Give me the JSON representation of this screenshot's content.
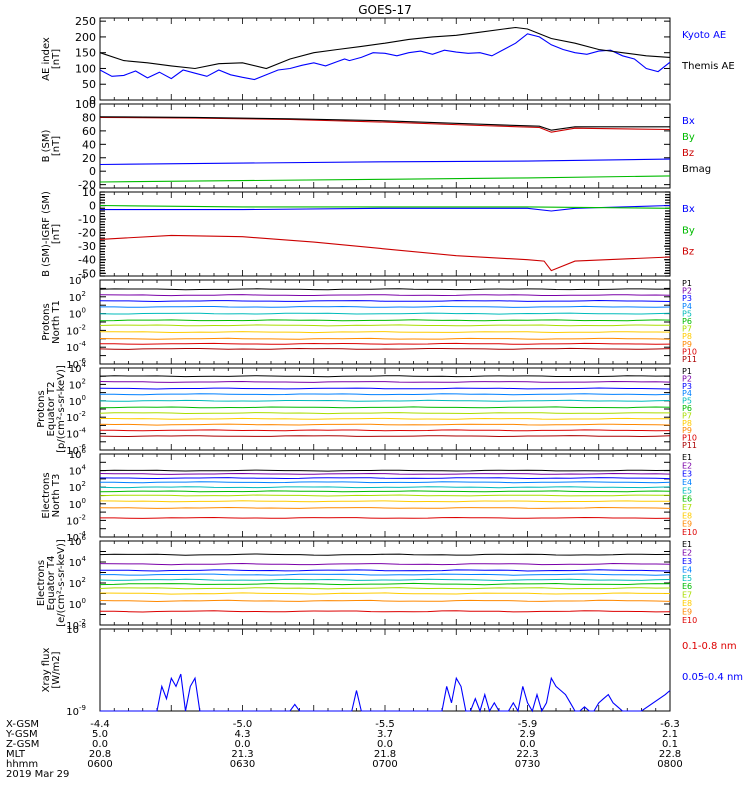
{
  "title": "GOES-17",
  "chart_data": [
    {
      "type": "line",
      "ylabel": [
        "AE index",
        "[nT]"
      ],
      "ylim": [
        0,
        260
      ],
      "yticks": [
        0,
        50,
        100,
        150,
        200,
        250
      ],
      "legend": [
        "Kyoto AE",
        "Themis AE"
      ],
      "colors": [
        "#0000ff",
        "#000000"
      ],
      "series": [
        {
          "name": "Kyoto AE",
          "x": [
            0,
            5,
            10,
            15,
            20,
            25,
            30,
            35,
            40,
            45,
            50,
            55,
            60,
            65,
            70,
            75,
            80,
            85,
            90,
            95,
            100,
            103,
            105,
            110,
            115,
            120,
            125,
            130,
            135,
            140,
            145,
            150,
            155,
            160,
            165,
            170,
            175,
            180,
            185,
            190,
            195,
            200,
            205,
            210,
            215,
            220,
            225,
            230,
            235,
            240
          ],
          "y": [
            95,
            75,
            78,
            92,
            70,
            88,
            68,
            95,
            85,
            75,
            95,
            80,
            72,
            65,
            80,
            95,
            100,
            110,
            118,
            108,
            122,
            130,
            125,
            135,
            150,
            148,
            140,
            150,
            155,
            145,
            158,
            152,
            148,
            150,
            140,
            160,
            180,
            210,
            200,
            175,
            160,
            150,
            145,
            155,
            158,
            140,
            130,
            100,
            90,
            120
          ]
        },
        {
          "name": "Themis AE",
          "x": [
            0,
            10,
            20,
            30,
            40,
            50,
            60,
            70,
            80,
            90,
            100,
            110,
            120,
            130,
            140,
            150,
            160,
            170,
            175,
            180,
            190,
            200,
            210,
            220,
            230,
            240
          ],
          "y": [
            150,
            125,
            118,
            108,
            100,
            115,
            118,
            100,
            130,
            150,
            160,
            170,
            180,
            192,
            200,
            205,
            215,
            225,
            230,
            225,
            195,
            180,
            160,
            150,
            140,
            135
          ]
        }
      ]
    },
    {
      "type": "line",
      "ylabel": [
        "B (SM)",
        "[nT]"
      ],
      "ylim": [
        -25,
        100
      ],
      "yticks": [
        -20,
        0,
        20,
        40,
        60,
        80,
        100
      ],
      "legend": [
        "Bx",
        "By",
        "Bz",
        "Bmag"
      ],
      "colors": [
        "#0000ff",
        "#00bb00",
        "#cc0000",
        "#000000"
      ],
      "series": [
        {
          "name": "Bx",
          "x": [
            0,
            60,
            120,
            180,
            240
          ],
          "y": [
            10,
            12,
            14,
            15,
            18
          ]
        },
        {
          "name": "By",
          "x": [
            0,
            60,
            120,
            180,
            240
          ],
          "y": [
            -16,
            -14,
            -12,
            -10,
            -7
          ]
        },
        {
          "name": "Bz",
          "x": [
            0,
            40,
            80,
            120,
            160,
            185,
            190,
            200,
            240
          ],
          "y": [
            80,
            79,
            77,
            73,
            68,
            65,
            58,
            64,
            62
          ]
        },
        {
          "name": "Bmag",
          "x": [
            0,
            40,
            80,
            120,
            160,
            185,
            190,
            200,
            240
          ],
          "y": [
            81,
            80,
            78,
            75,
            70,
            67,
            61,
            66,
            66
          ]
        }
      ]
    },
    {
      "type": "line",
      "ylabel": [
        "B (SM)-IGRF (SM)",
        "[nT]"
      ],
      "ylim": [
        -52,
        10
      ],
      "yticks": [
        -50,
        -40,
        -30,
        -20,
        -10,
        0,
        10
      ],
      "legend": [
        "Bx",
        "By",
        "Bz"
      ],
      "colors": [
        "#0000ff",
        "#00bb00",
        "#cc0000"
      ],
      "series": [
        {
          "name": "Bx",
          "x": [
            0,
            60,
            120,
            180,
            190,
            200,
            240
          ],
          "y": [
            -3,
            -3,
            -2,
            -2,
            -4,
            -2,
            0
          ]
        },
        {
          "name": "By",
          "x": [
            0,
            60,
            120,
            180,
            240
          ],
          "y": [
            0,
            -1,
            -1,
            -1,
            -2
          ]
        },
        {
          "name": "Bz",
          "x": [
            0,
            30,
            60,
            90,
            120,
            150,
            180,
            187,
            190,
            200,
            240
          ],
          "y": [
            -25,
            -22,
            -23,
            -27,
            -32,
            -37,
            -40,
            -41,
            -48,
            -41,
            -38
          ]
        }
      ]
    },
    {
      "type": "line",
      "ylabel": [
        "Protons",
        "North T1"
      ],
      "ylog": true,
      "ylim_exp": [
        -6,
        4
      ],
      "legend": [
        "P1",
        "P2",
        "P3",
        "P4",
        "P5",
        "P6",
        "P7",
        "P8",
        "P9",
        "P10",
        "P11"
      ],
      "colors": [
        "#000000",
        "#7a00a8",
        "#0000ff",
        "#0080ff",
        "#00bbbb",
        "#00bb00",
        "#aadd00",
        "#ffcc00",
        "#ff8800",
        "#dd0000",
        "#aa0000"
      ],
      "levels": [
        2.9,
        2.2,
        1.5,
        0.8,
        0,
        -0.8,
        -1.4,
        -2.2,
        -3.0,
        -3.6,
        -4.2
      ]
    },
    {
      "type": "line",
      "ylabel": [
        "Protons",
        "Equator T2",
        "[p/(cm²-s-sr-keV)]"
      ],
      "ylog": true,
      "ylim_exp": [
        -6,
        4
      ],
      "legend": [
        "P1",
        "P2",
        "P3",
        "P4",
        "P5",
        "P6",
        "P7",
        "P8",
        "P9",
        "P10",
        "P11"
      ],
      "colors": [
        "#000000",
        "#7a00a8",
        "#0000ff",
        "#0080ff",
        "#00bbbb",
        "#00bb00",
        "#aadd00",
        "#ffcc00",
        "#ff8800",
        "#dd0000",
        "#aa0000"
      ],
      "levels": [
        3.0,
        2.3,
        1.5,
        0.8,
        0,
        -0.8,
        -1.5,
        -2.2,
        -2.9,
        -3.6,
        -4.3
      ]
    },
    {
      "type": "line",
      "ylabel": [
        "Electrons",
        "North T3"
      ],
      "ylog": true,
      "ylim_exp": [
        -4,
        6
      ],
      "legend": [
        "E1",
        "E2",
        "E3",
        "E4",
        "E5",
        "E6",
        "E7",
        "E8",
        "E9",
        "E10"
      ],
      "colors": [
        "#000000",
        "#7a00a8",
        "#0000ff",
        "#0080ff",
        "#00bbbb",
        "#00bb00",
        "#aadd00",
        "#ffcc00",
        "#ff8800",
        "#dd0000"
      ],
      "levels": [
        4.0,
        3.6,
        3.1,
        2.6,
        2.0,
        1.5,
        1.0,
        0.3,
        -0.5,
        -1.7
      ]
    },
    {
      "type": "line",
      "ylabel": [
        "Electrons",
        "Equator T4",
        "[e/(cm²-s-sr-keV)]"
      ],
      "ylog": true,
      "ylim_exp": [
        -2,
        6
      ],
      "legend": [
        "E1",
        "E2",
        "E3",
        "E4",
        "E5",
        "E6",
        "E7",
        "E8",
        "E9",
        "E10"
      ],
      "colors": [
        "#000000",
        "#7a00a8",
        "#0000ff",
        "#0080ff",
        "#00bbbb",
        "#00bb00",
        "#aadd00",
        "#ffcc00",
        "#ff8800",
        "#dd0000"
      ],
      "levels": [
        4.7,
        3.8,
        3.2,
        2.8,
        2.3,
        1.9,
        1.5,
        1.0,
        0.3,
        -0.7
      ]
    },
    {
      "type": "line",
      "ylabel": [
        "Xray flux",
        "[W/m2]"
      ],
      "ylog": true,
      "ylim_exp": [
        -9,
        -8
      ],
      "legend": [
        "0.1-0.8 nm",
        "0.05-0.4 nm"
      ],
      "colors": [
        "#dd0000",
        "#0000ff"
      ],
      "series": [
        {
          "name": "0.05-0.4 nm",
          "x": [
            0,
            24,
            26,
            28,
            30,
            32,
            34,
            36,
            38,
            40,
            42,
            44,
            46,
            48,
            80,
            82,
            84,
            106,
            108,
            110,
            144,
            146,
            148,
            150,
            152,
            154,
            156,
            158,
            160,
            162,
            164,
            166,
            168,
            170,
            172,
            174,
            176,
            178,
            180,
            182,
            184,
            186,
            188,
            190,
            192,
            194,
            196,
            198,
            200,
            202,
            204,
            206,
            208,
            210,
            212,
            214,
            216,
            218,
            220,
            222,
            224,
            226,
            228,
            238,
            240
          ],
          "y": [
            -9,
            -9,
            -8.7,
            -8.85,
            -8.6,
            -8.7,
            -8.55,
            -9,
            -8.7,
            -8.6,
            -9,
            -9,
            -9,
            -9,
            -9,
            -8.92,
            -9,
            -9,
            -8.75,
            -9,
            -9,
            -8.7,
            -8.9,
            -8.6,
            -8.7,
            -9,
            -9,
            -8.85,
            -9,
            -8.8,
            -9,
            -8.9,
            -9,
            -9,
            -9,
            -8.9,
            -9,
            -8.7,
            -8.9,
            -9,
            -8.8,
            -9,
            -8.9,
            -8.6,
            -8.7,
            -8.75,
            -8.8,
            -8.9,
            -9,
            -9,
            -8.95,
            -9,
            -9,
            -8.9,
            -8.85,
            -8.8,
            -8.9,
            -8.95,
            -9,
            -9,
            -9,
            -9,
            -9,
            -8.8,
            -8.75
          ]
        }
      ]
    }
  ],
  "footer": {
    "rows": [
      {
        "label": "X-GSM",
        "values": [
          "-4.4",
          "-5.0",
          "-5.5",
          "-5.9",
          "-6.3"
        ]
      },
      {
        "label": "Y-GSM",
        "values": [
          "5.0",
          "4.3",
          "3.7",
          "2.9",
          "2.1"
        ]
      },
      {
        "label": "Z-GSM",
        "values": [
          "0.0",
          "0.0",
          "0.0",
          "0.0",
          "0.1"
        ]
      },
      {
        "label": "MLT",
        "values": [
          "20.8",
          "21.3",
          "21.8",
          "22.3",
          "22.8"
        ]
      },
      {
        "label": "hhmm",
        "values": [
          "0600",
          "0630",
          "0700",
          "0730",
          "0800"
        ]
      }
    ],
    "date": "2019 Mar 29"
  }
}
